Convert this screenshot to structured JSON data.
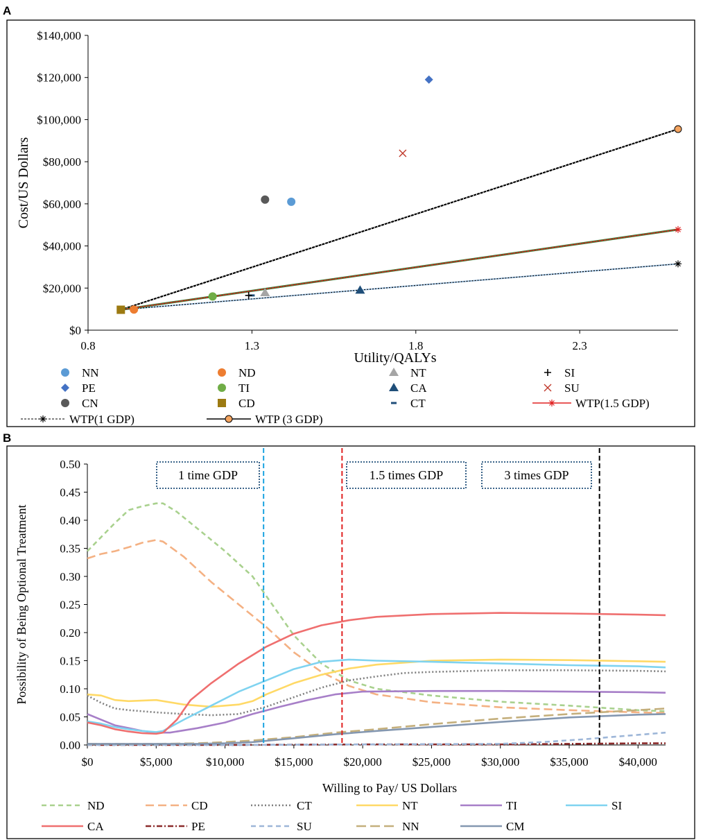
{
  "panels": {
    "a": "A",
    "b": "B"
  },
  "chart_data": [
    {
      "type": "scatter",
      "panel": "A",
      "xlabel": "Utility/QALYs",
      "ylabel": "Cost/US Dollars",
      "xlim": [
        0.8,
        2.6
      ],
      "ylim": [
        0,
        140000
      ],
      "xticks": [
        0.8,
        1.3,
        1.8,
        2.3
      ],
      "xtick_labels": [
        "0.8",
        "1.3",
        "1.8",
        "2.3"
      ],
      "yticks": [
        0,
        20000,
        40000,
        60000,
        80000,
        100000,
        120000,
        140000
      ],
      "ytick_labels": [
        "$0",
        "$20,000",
        "$40,000",
        "$60,000",
        "$80,000",
        "$100,000",
        "$120,000",
        "$140,000"
      ],
      "points": [
        {
          "name": "NN",
          "x": 1.42,
          "y": 61000,
          "marker": "circle",
          "color": "#5B9BD5"
        },
        {
          "name": "PE",
          "x": 1.84,
          "y": 119000,
          "marker": "diamond",
          "color": "#4472C4"
        },
        {
          "name": "CN",
          "x": 1.34,
          "y": 62000,
          "marker": "circle",
          "color": "#595959"
        },
        {
          "name": "ND",
          "x": 0.94,
          "y": 9800,
          "marker": "circle",
          "color": "#ED7D31"
        },
        {
          "name": "TI",
          "x": 1.18,
          "y": 16000,
          "marker": "circle",
          "color": "#70AD47"
        },
        {
          "name": "CD",
          "x": 0.9,
          "y": 9700,
          "marker": "square",
          "color": "#9C7A12"
        },
        {
          "name": "NT",
          "x": 1.34,
          "y": 17800,
          "marker": "triangle",
          "color": "#A5A5A5"
        },
        {
          "name": "CA",
          "x": 1.63,
          "y": 19000,
          "marker": "triangle",
          "color": "#1F4E79"
        },
        {
          "name": "CT",
          "x": 1.3,
          "y": 16500,
          "marker": "dash",
          "color": "#1F4E79"
        },
        {
          "name": "SI",
          "x": 1.29,
          "y": 16500,
          "marker": "plus",
          "color": "#000000"
        },
        {
          "name": "SU",
          "x": 1.76,
          "y": 84000,
          "marker": "x",
          "color": "#C0392B"
        }
      ],
      "lines": [
        {
          "name": "WTP(1 GDP)",
          "x": [
            0.9,
            2.6
          ],
          "y": [
            9700,
            31500
          ],
          "color": "#000000",
          "style": "dotted",
          "marker": "asterisk"
        },
        {
          "name": "WTP (3 GDP)",
          "x": [
            0.9,
            2.6
          ],
          "y": [
            9700,
            95500
          ],
          "color": "#000000",
          "style": "solid",
          "marker": "circle"
        },
        {
          "name": "WTP(1.5 GDP)",
          "x": [
            0.9,
            2.6
          ],
          "y": [
            9700,
            47800
          ],
          "color": "#E02020",
          "style": "solid",
          "marker": "asterisk"
        }
      ],
      "legend": [
        {
          "name": "NN",
          "marker": "circle",
          "color": "#5B9BD5"
        },
        {
          "name": "ND",
          "marker": "circle",
          "color": "#ED7D31"
        },
        {
          "name": "NT",
          "marker": "triangle",
          "color": "#A5A5A5"
        },
        {
          "name": "SI",
          "marker": "plus",
          "color": "#000000"
        },
        {
          "name": "PE",
          "marker": "diamond",
          "color": "#4472C4"
        },
        {
          "name": "TI",
          "marker": "circle",
          "color": "#70AD47"
        },
        {
          "name": "CA",
          "marker": "triangle",
          "color": "#1F4E79"
        },
        {
          "name": "SU",
          "marker": "x",
          "color": "#C0392B"
        },
        {
          "name": "CN",
          "marker": "circle",
          "color": "#595959"
        },
        {
          "name": "CD",
          "marker": "square",
          "color": "#9C7A12"
        },
        {
          "name": "CT",
          "marker": "dash",
          "color": "#1F4E79"
        },
        {
          "name": "WTP(1.5 GDP)",
          "marker": "asterisk-line",
          "color": "#E02020"
        },
        {
          "name": "WTP(1 GDP)",
          "marker": "asterisk-dotted",
          "color": "#000000"
        },
        {
          "name": "WTP (3 GDP)",
          "marker": "circle-line",
          "color": "#000000"
        }
      ]
    },
    {
      "type": "line",
      "panel": "B",
      "xlabel": "Willing to Pay/ US Dollars",
      "ylabel": "Possibility of Being Optional Treatment",
      "xlim": [
        0,
        42000
      ],
      "ylim": [
        0,
        0.5
      ],
      "xticks": [
        0,
        5000,
        10000,
        15000,
        20000,
        25000,
        30000,
        35000,
        40000
      ],
      "xtick_labels": [
        "$0",
        "$5,000",
        "$10,000",
        "$15,000",
        "$20,000",
        "$25,000",
        "$30,000",
        "$35,000",
        "$40,000"
      ],
      "yticks": [
        0,
        0.05,
        0.1,
        0.15,
        0.2,
        0.25,
        0.3,
        0.35,
        0.4,
        0.45,
        0.5
      ],
      "ytick_labels": [
        "0.00",
        "0.05",
        "0.10",
        "0.15",
        "0.20",
        "0.25",
        "0.30",
        "0.35",
        "0.40",
        "0.45",
        "0.50"
      ],
      "thresholds": [
        {
          "x": 12800,
          "color": "#1AA3E0",
          "label": "1 time GDP"
        },
        {
          "x": 18500,
          "color": "#E02020",
          "label": "1.5 times GDP"
        },
        {
          "x": 37200,
          "color": "#000000",
          "label": "3 times GDP"
        }
      ],
      "series": [
        {
          "name": "ND",
          "color": "#A9D18E",
          "dash": "7,5",
          "x": [
            0,
            1000,
            2000,
            3000,
            4000,
            5000,
            5500,
            6500,
            8000,
            10000,
            12000,
            13000,
            15000,
            17000,
            19000,
            21000,
            25000,
            30000,
            35000,
            40000,
            42000
          ],
          "y": [
            0.345,
            0.37,
            0.395,
            0.418,
            0.425,
            0.43,
            0.43,
            0.415,
            0.385,
            0.345,
            0.3,
            0.265,
            0.195,
            0.145,
            0.115,
            0.1,
            0.088,
            0.077,
            0.07,
            0.062,
            0.06
          ]
        },
        {
          "name": "CD",
          "color": "#F4B183",
          "dash": "12,6",
          "x": [
            0,
            1000,
            2000,
            3000,
            4000,
            5000,
            5500,
            7000,
            9000,
            11000,
            13000,
            15000,
            17000,
            19000,
            21000,
            25000,
            30000,
            35000,
            40000,
            42000
          ],
          "y": [
            0.332,
            0.34,
            0.345,
            0.352,
            0.36,
            0.365,
            0.362,
            0.335,
            0.29,
            0.25,
            0.21,
            0.165,
            0.13,
            0.105,
            0.09,
            0.076,
            0.067,
            0.062,
            0.058,
            0.057
          ]
        },
        {
          "name": "CT",
          "color": "#7F7F7F",
          "dash": "2,3",
          "x": [
            0,
            1000,
            2000,
            3000,
            5000,
            7000,
            9000,
            11000,
            13000,
            15000,
            17000,
            19000,
            21000,
            23000,
            25000,
            30000,
            35000,
            40000,
            42000
          ],
          "y": [
            0.088,
            0.075,
            0.065,
            0.062,
            0.058,
            0.055,
            0.053,
            0.055,
            0.068,
            0.085,
            0.102,
            0.115,
            0.122,
            0.128,
            0.13,
            0.133,
            0.133,
            0.132,
            0.131
          ]
        },
        {
          "name": "NT",
          "color": "#FFD966",
          "dash": "",
          "x": [
            0,
            1000,
            2000,
            3000,
            5000,
            7000,
            9000,
            11000,
            12000,
            13000,
            15000,
            17000,
            19000,
            21000,
            25000,
            30000,
            35000,
            40000,
            42000
          ],
          "y": [
            0.09,
            0.088,
            0.08,
            0.078,
            0.08,
            0.072,
            0.068,
            0.072,
            0.078,
            0.09,
            0.11,
            0.125,
            0.136,
            0.143,
            0.15,
            0.152,
            0.151,
            0.149,
            0.148
          ]
        },
        {
          "name": "TI",
          "color": "#A77FC8",
          "dash": "",
          "x": [
            0,
            1000,
            2000,
            3000,
            4000,
            5000,
            6000,
            8000,
            10000,
            12000,
            14000,
            16000,
            18000,
            20000,
            25000,
            30000,
            35000,
            40000,
            42000
          ],
          "y": [
            0.055,
            0.045,
            0.035,
            0.03,
            0.025,
            0.022,
            0.022,
            0.03,
            0.04,
            0.055,
            0.068,
            0.08,
            0.09,
            0.095,
            0.096,
            0.096,
            0.095,
            0.094,
            0.093
          ]
        },
        {
          "name": "SI",
          "color": "#7FD3F0",
          "dash": "",
          "x": [
            0,
            1000,
            2000,
            3000,
            4000,
            5000,
            5500,
            7000,
            9000,
            11000,
            13000,
            15000,
            17000,
            19000,
            21000,
            25000,
            30000,
            35000,
            40000,
            42000
          ],
          "y": [
            0.042,
            0.038,
            0.032,
            0.028,
            0.025,
            0.023,
            0.025,
            0.045,
            0.07,
            0.095,
            0.115,
            0.135,
            0.148,
            0.152,
            0.15,
            0.148,
            0.145,
            0.142,
            0.14,
            0.138
          ]
        },
        {
          "name": "CA",
          "color": "#EF6F6F",
          "dash": "",
          "x": [
            0,
            1000,
            2000,
            3000,
            4000,
            5000,
            5500,
            6500,
            7500,
            9000,
            11000,
            13000,
            15000,
            17000,
            19000,
            21000,
            25000,
            30000,
            35000,
            40000,
            42000
          ],
          "y": [
            0.04,
            0.035,
            0.028,
            0.024,
            0.021,
            0.02,
            0.022,
            0.045,
            0.08,
            0.11,
            0.145,
            0.175,
            0.198,
            0.213,
            0.222,
            0.228,
            0.233,
            0.235,
            0.234,
            0.232,
            0.231
          ]
        },
        {
          "name": "PE",
          "color": "#8B2B2B",
          "dash": "8,3,2,3",
          "x": [
            0,
            10000,
            20000,
            30000,
            35000,
            40000,
            42000
          ],
          "y": [
            0.0,
            0.0,
            0.001,
            0.001,
            0.002,
            0.003,
            0.003
          ]
        },
        {
          "name": "SU",
          "color": "#9DB6D8",
          "dash": "7,5",
          "x": [
            0,
            10000,
            20000,
            30000,
            33000,
            36000,
            39000,
            42000
          ],
          "y": [
            0.0,
            0.0,
            0.001,
            0.002,
            0.005,
            0.01,
            0.016,
            0.022
          ]
        },
        {
          "name": "NN",
          "color": "#C4AF7C",
          "dash": "14,6",
          "x": [
            0,
            5000,
            8000,
            10000,
            12000,
            15000,
            18000,
            21000,
            25000,
            30000,
            35000,
            40000,
            42000
          ],
          "y": [
            0.002,
            0.002,
            0.003,
            0.005,
            0.008,
            0.014,
            0.022,
            0.028,
            0.037,
            0.047,
            0.055,
            0.062,
            0.065
          ]
        },
        {
          "name": "CM",
          "color": "#8497B0",
          "dash": "",
          "x": [
            0,
            5000,
            8000,
            10000,
            12000,
            15000,
            18000,
            21000,
            25000,
            30000,
            35000,
            40000,
            42000
          ],
          "y": [
            0.002,
            0.002,
            0.002,
            0.003,
            0.005,
            0.012,
            0.019,
            0.025,
            0.032,
            0.041,
            0.049,
            0.054,
            0.055
          ]
        }
      ]
    }
  ]
}
